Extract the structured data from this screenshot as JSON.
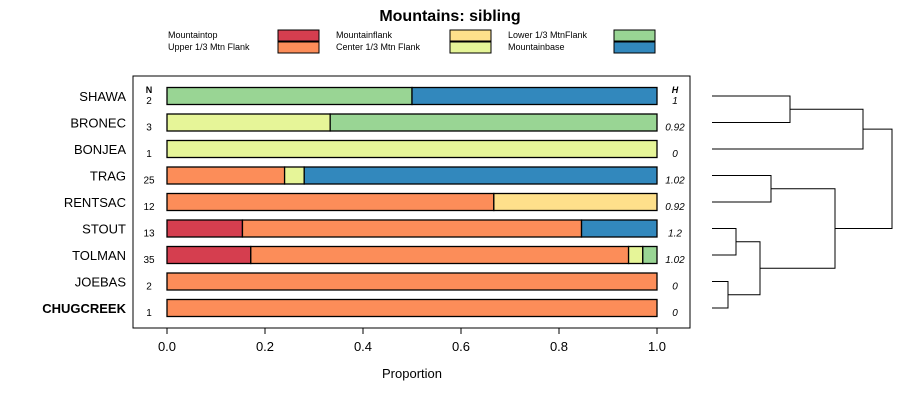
{
  "chart_data": {
    "type": "bar",
    "stacked": true,
    "orientation": "horizontal",
    "title": "Mountains: sibling",
    "xlabel": "Proportion",
    "ylabel": "",
    "xlim": [
      0,
      1
    ],
    "x_ticks": [
      "0.0",
      "0.2",
      "0.4",
      "0.6",
      "0.8",
      "1.0"
    ],
    "n_header": "N",
    "h_header": "H",
    "legend": [
      {
        "name": "Mountaintop",
        "color": "#d53e4f"
      },
      {
        "name": "Upper 1/3 Mtn Flank",
        "color": "#fc8d59"
      },
      {
        "name": "Mountainflank",
        "color": "#fee08b"
      },
      {
        "name": "Center 1/3 Mtn Flank",
        "color": "#e6f598"
      },
      {
        "name": "Lower 1/3 MtnFlank",
        "color": "#99d594"
      },
      {
        "name": "Mountainbase",
        "color": "#3288bd"
      }
    ],
    "categories": [
      "SHAWA",
      "BRONEC",
      "BONJEA",
      "TRAG",
      "RENTSAC",
      "STOUT",
      "TOLMAN",
      "JOEBAS",
      "CHUGCREEK"
    ],
    "bold_category": "CHUGCREEK",
    "n": [
      "2",
      "3",
      "1",
      "25",
      "12",
      "13",
      "35",
      "2",
      "1"
    ],
    "h": [
      "1",
      "0.92",
      "0",
      "1.02",
      "0.92",
      "1.2",
      "1.02",
      "0",
      "0"
    ],
    "series": [
      {
        "name": "Mountaintop",
        "values": [
          0,
          0,
          0,
          0,
          0,
          0.154,
          0.171,
          0,
          0
        ]
      },
      {
        "name": "Upper 1/3 Mtn Flank",
        "values": [
          0,
          0,
          0,
          0.24,
          0.667,
          0.692,
          0.771,
          1,
          1
        ]
      },
      {
        "name": "Mountainflank",
        "values": [
          0,
          0,
          0,
          0,
          0.333,
          0,
          0,
          0,
          0
        ]
      },
      {
        "name": "Center 1/3 Mtn Flank",
        "values": [
          0,
          0.333,
          1,
          0.04,
          0,
          0,
          0.029,
          0,
          0
        ]
      },
      {
        "name": "Lower 1/3 MtnFlank",
        "values": [
          0.5,
          0.667,
          0,
          0,
          0,
          0,
          0.029,
          0,
          0
        ]
      },
      {
        "name": "Mountainbase",
        "values": [
          0.5,
          0,
          0,
          0.72,
          0,
          0.154,
          0,
          0,
          0
        ]
      }
    ],
    "dendrogram": "leaf order SHAWA..CHUGCREEK; clusters ((SHAWA,BRONEC),BONJEA) and ((TRAG,RENTSAC),((STOUT,TOLMAN),(JOEBAS,CHUGCREEK)))"
  }
}
